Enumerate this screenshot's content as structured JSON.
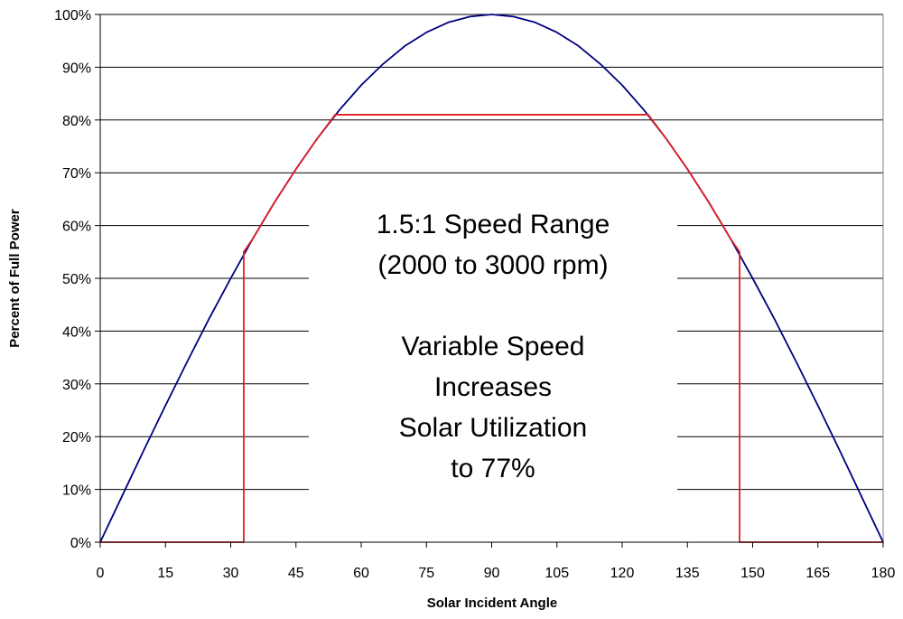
{
  "chart_data": {
    "type": "line",
    "title": "",
    "xlabel": "Solar Incident Angle",
    "ylabel": "Percent of Full Power",
    "xlim": [
      0,
      180
    ],
    "ylim": [
      0,
      100
    ],
    "x_ticks": [
      0,
      15,
      30,
      45,
      60,
      75,
      90,
      105,
      120,
      135,
      150,
      165,
      180
    ],
    "x_tick_labels": [
      "0",
      "15",
      "30",
      "45",
      "60",
      "75",
      "90",
      "105",
      "120",
      "135",
      "150",
      "165",
      "180"
    ],
    "y_ticks": [
      0,
      10,
      20,
      30,
      40,
      50,
      60,
      70,
      80,
      90,
      100
    ],
    "y_tick_labels": [
      "0%",
      "10%",
      "20%",
      "30%",
      "40%",
      "50%",
      "60%",
      "70%",
      "80%",
      "90%",
      "100%"
    ],
    "grid": "horizontal",
    "legend": "none",
    "colors": {
      "full_power_curve": "#000080",
      "utilization_curve": "#e02020",
      "gridline": "#000000",
      "plot_border": "#808080",
      "axis": "#000000"
    },
    "series": [
      {
        "x": [
          0,
          5,
          10,
          15,
          20,
          25,
          30,
          35,
          40,
          45,
          50,
          55,
          60,
          65,
          70,
          75,
          80,
          85,
          90,
          95,
          100,
          105,
          110,
          115,
          120,
          125,
          130,
          135,
          140,
          145,
          150,
          155,
          160,
          165,
          170,
          175,
          180
        ],
        "y": [
          0,
          8.7,
          17.4,
          25.9,
          34.2,
          42.3,
          50,
          57.4,
          64.3,
          70.7,
          76.6,
          81.9,
          86.6,
          90.6,
          94,
          96.6,
          98.5,
          99.6,
          100,
          99.6,
          98.5,
          96.6,
          94,
          90.6,
          86.6,
          81.9,
          76.6,
          70.7,
          64.3,
          57.4,
          50,
          42.3,
          34.2,
          25.9,
          17.4,
          8.7,
          0
        ]
      },
      {
        "x": [
          0,
          33,
          33,
          33,
          35,
          40,
          45,
          50,
          54,
          126,
          130,
          135,
          140,
          145,
          147,
          147,
          147,
          180
        ],
        "y": [
          0,
          0,
          38,
          55,
          57.4,
          64.3,
          70.7,
          76.6,
          81,
          81,
          76.6,
          70.7,
          64.3,
          57.4,
          55,
          8,
          0,
          0
        ]
      }
    ],
    "annotations": [
      {
        "lines": [
          "1.5:1 Speed Range",
          "(2000 to 3000 rpm)",
          "",
          "Variable Speed",
          "Increases",
          "Solar Utilization",
          "to 77%"
        ]
      }
    ]
  }
}
